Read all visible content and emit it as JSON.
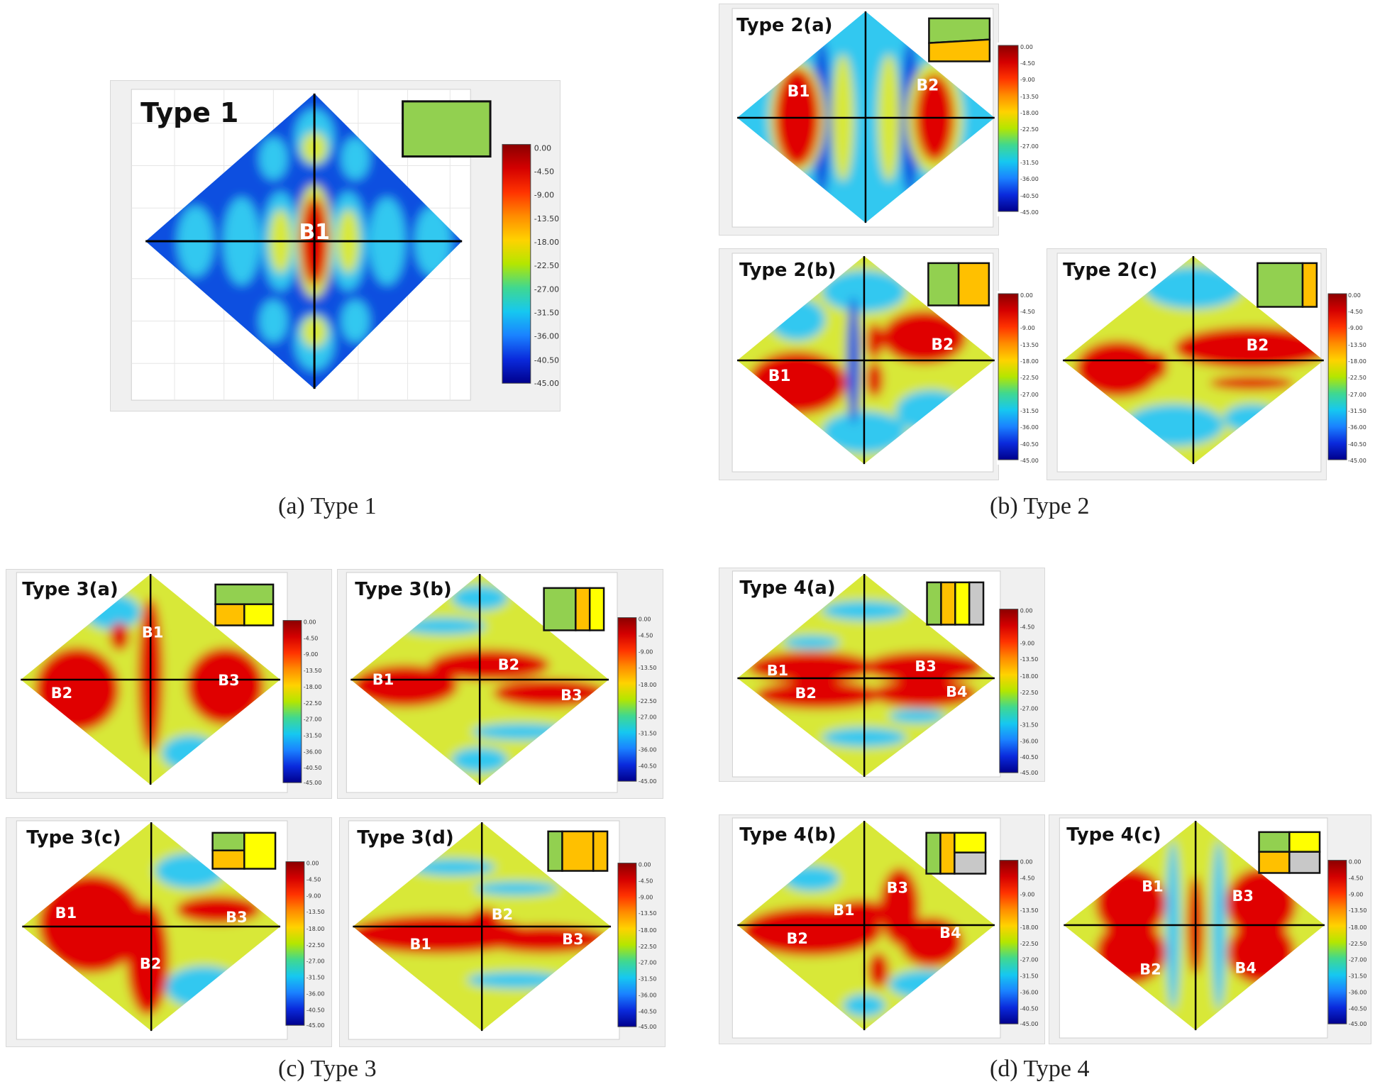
{
  "colorbar": {
    "ticks": [
      "0.00",
      "-4.50",
      "-9.00",
      "-13.50",
      "-18.00",
      "-22.50",
      "-27.00",
      "-31.50",
      "-36.00",
      "-40.50",
      "-45.00"
    ],
    "stops": [
      "#8b0000",
      "#d40000",
      "#ff3300",
      "#ff8c00",
      "#ffd200",
      "#b4e600",
      "#40d890",
      "#16c8f0",
      "#1a82ff",
      "#0a2adc",
      "#00008c"
    ]
  },
  "colors": {
    "green": "#92d050",
    "orange": "#ffc000",
    "yellow": "#ffff00",
    "gray": "#c8c8c8",
    "field_blue": "#1050e0",
    "field_cyan": "#30c8f0",
    "field_yellow": "#d8e838",
    "field_red": "#e00000"
  },
  "captions": {
    "a": "(a)  Type  1",
    "b": "(b)  Type  2",
    "c": "(c)  Type  3",
    "d": "(d)  Type  4"
  },
  "panels": {
    "t1": {
      "title": "Type 1",
      "labels": [
        "B1"
      ]
    },
    "t2a": {
      "title": "Type 2(a)",
      "labels": [
        "B1",
        "B2"
      ]
    },
    "t2b": {
      "title": "Type 2(b)",
      "labels": [
        "B1",
        "B2"
      ]
    },
    "t2c": {
      "title": "Type 2(c)",
      "labels": [
        "B2"
      ]
    },
    "t3a": {
      "title": "Type 3(a)",
      "labels": [
        "B1",
        "B2",
        "B3"
      ]
    },
    "t3b": {
      "title": "Type 3(b)",
      "labels": [
        "B1",
        "B2",
        "B3"
      ]
    },
    "t3c": {
      "title": "Type 3(c)",
      "labels": [
        "B1",
        "B2",
        "B3"
      ]
    },
    "t3d": {
      "title": "Type 3(d)",
      "labels": [
        "B1",
        "B2",
        "B3"
      ]
    },
    "t4a": {
      "title": "Type 4(a)",
      "labels": [
        "B1",
        "B2",
        "B3",
        "B4"
      ]
    },
    "t4b": {
      "title": "Type 4(b)",
      "labels": [
        "B1",
        "B2",
        "B3",
        "B4"
      ]
    },
    "t4c": {
      "title": "Type 4(c)",
      "labels": [
        "B1",
        "B2",
        "B3",
        "B4"
      ]
    }
  }
}
